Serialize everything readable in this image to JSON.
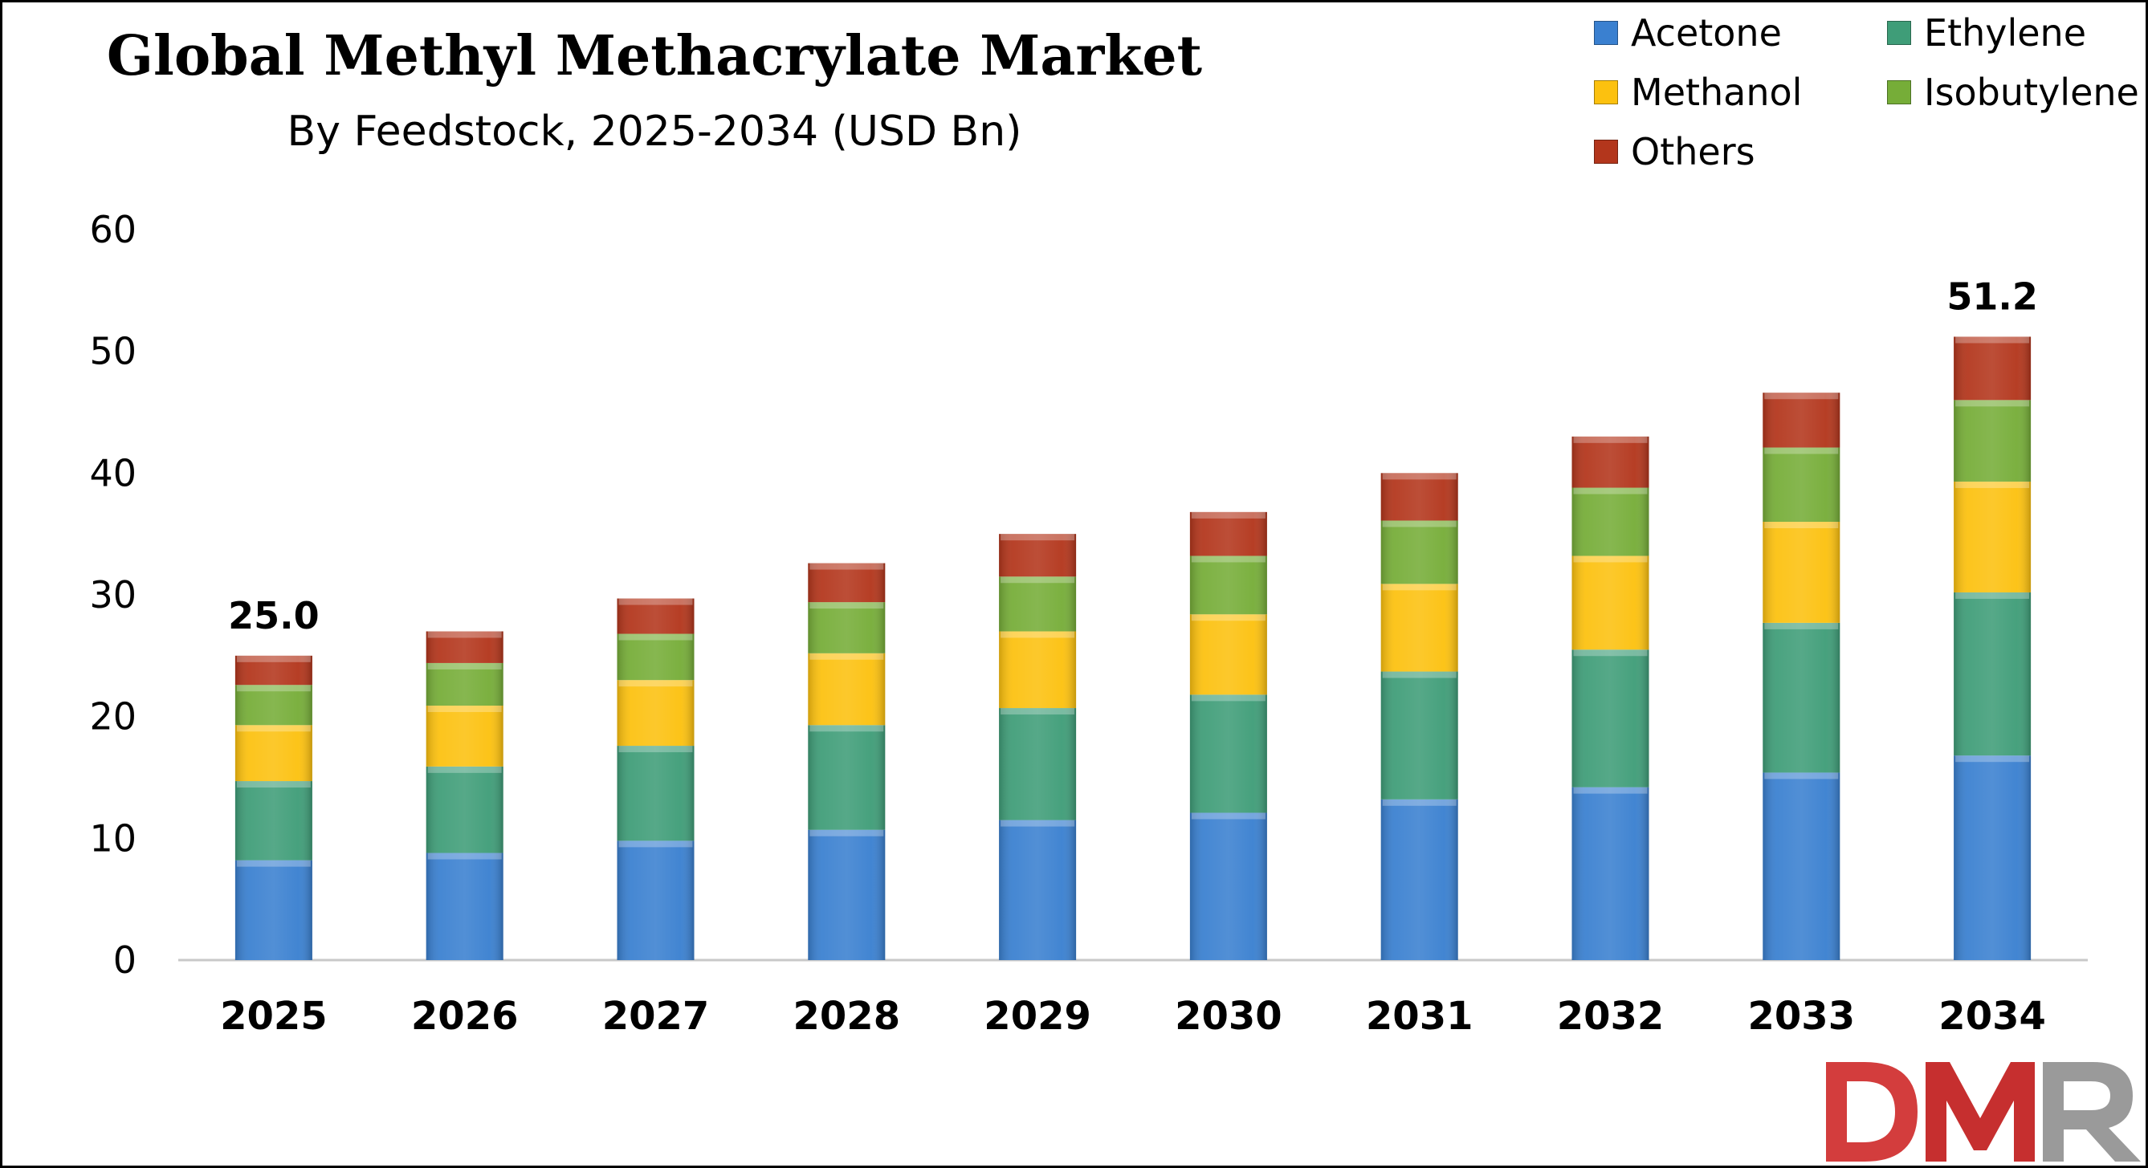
{
  "header": {
    "title": "Global Methyl Methacrylate Market",
    "subtitle": "By Feedstock, 2025-2034 (USD Bn)"
  },
  "logo": {
    "text": "DMR",
    "colors": [
      "#d33d3d",
      "#c62f2f",
      "#9a9a9a"
    ]
  },
  "colors": {
    "Acetone": "#3a80d0",
    "Ethylene": "#3f9d78",
    "Methanol": "#fcc10f",
    "Isobutylene": "#76ad38",
    "Others": "#b3361c"
  },
  "chart_data": {
    "type": "bar",
    "stacked": true,
    "title": "Global Methyl Methacrylate Market",
    "subtitle": "By Feedstock, 2025-2034 (USD Bn)",
    "xlabel": "",
    "ylabel": "",
    "ylim": [
      0,
      60
    ],
    "yticks": [
      0,
      10,
      20,
      30,
      40,
      50,
      60
    ],
    "grid": false,
    "legend_position": "top-right",
    "categories": [
      "2025",
      "2026",
      "2027",
      "2028",
      "2029",
      "2030",
      "2031",
      "2032",
      "2033",
      "2034"
    ],
    "series": [
      {
        "name": "Acetone",
        "values": [
          8.2,
          8.8,
          9.8,
          10.7,
          11.5,
          12.1,
          13.2,
          14.2,
          15.4,
          16.8
        ]
      },
      {
        "name": "Ethylene",
        "values": [
          6.5,
          7.1,
          7.8,
          8.6,
          9.2,
          9.7,
          10.5,
          11.3,
          12.3,
          13.4
        ]
      },
      {
        "name": "Methanol",
        "values": [
          4.6,
          5.0,
          5.4,
          5.9,
          6.3,
          6.6,
          7.2,
          7.7,
          8.3,
          9.1
        ]
      },
      {
        "name": "Isobutylene",
        "values": [
          3.3,
          3.5,
          3.8,
          4.2,
          4.5,
          4.8,
          5.2,
          5.6,
          6.1,
          6.7
        ]
      },
      {
        "name": "Others",
        "values": [
          2.4,
          2.6,
          2.9,
          3.2,
          3.5,
          3.6,
          3.9,
          4.2,
          4.5,
          5.2
        ]
      }
    ],
    "annotations": [
      {
        "category": "2025",
        "label": "25.0"
      },
      {
        "category": "2034",
        "label": "51.2"
      }
    ]
  }
}
